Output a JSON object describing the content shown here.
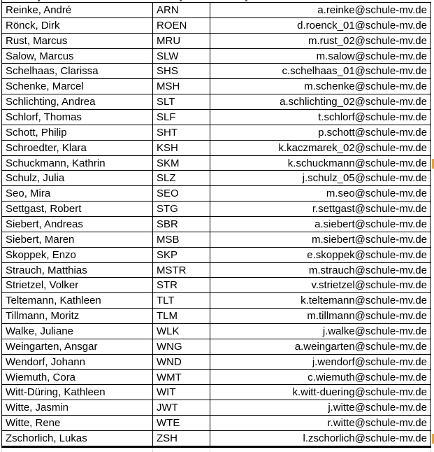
{
  "table": {
    "rows": [
      {
        "name": "Reinke, André",
        "code": "ARN",
        "email": "a.reinke@schule-mv.de"
      },
      {
        "name": "Rönck, Dirk",
        "code": "ROEN",
        "email": "d.roenck_01@schule-mv.de"
      },
      {
        "name": "Rust, Marcus",
        "code": "MRU",
        "email": "m.rust_02@schule-mv.de"
      },
      {
        "name": "Salow, Marcus",
        "code": "SLW",
        "email": "m.salow@schule-mv.de"
      },
      {
        "name": "Schelhaas, Clarissa",
        "code": "SHS",
        "email": "c.schelhaas_01@schule-mv.de"
      },
      {
        "name": "Schenke, Marcel",
        "code": "MSH",
        "email": "m.schenke@schule-mv.de"
      },
      {
        "name": "Schlichting, Andrea",
        "code": "SLT",
        "email": "a.schlichting_02@schule-mv.de"
      },
      {
        "name": "Schlorf, Thomas",
        "code": "SLF",
        "email": "t.schlorf@schule-mv.de"
      },
      {
        "name": "Schott, Philip",
        "code": "SHT",
        "email": "p.schott@schule-mv.de"
      },
      {
        "name": "Schroedter, Klara",
        "code": "KSH",
        "email": "k.kaczmarek_02@schule-mv.de"
      },
      {
        "name": "Schuckmann, Kathrin",
        "code": "SKM",
        "email": "k.schuckmann@schule-mv.de"
      },
      {
        "name": "Schulz, Julia",
        "code": "SLZ",
        "email": "j.schulz_05@schule-mv.de"
      },
      {
        "name": "Seo, Mira",
        "code": "SEO",
        "email": "m.seo@schule-mv.de"
      },
      {
        "name": "Settgast, Robert",
        "code": "STG",
        "email": "r.settgast@schule-mv.de"
      },
      {
        "name": "Siebert, Andreas",
        "code": "SBR",
        "email": "a.siebert@schule-mv.de"
      },
      {
        "name": "Siebert, Maren",
        "code": "MSB",
        "email": "m.siebert@schule-mv.de"
      },
      {
        "name": "Skoppek, Enzo",
        "code": "SKP",
        "email": "e.skoppek@schule-mv.de"
      },
      {
        "name": "Strauch, Matthias",
        "code": "MSTR",
        "email": "m.strauch@schule-mv.de"
      },
      {
        "name": "Strietzel, Volker",
        "code": "STR",
        "email": "v.strietzel@schule-mv.de"
      },
      {
        "name": "Teltemann, Kathleen",
        "code": "TLT",
        "email": "k.teltemann@schule-mv.de"
      },
      {
        "name": "Tillmann, Moritz",
        "code": "TLM",
        "email": "m.tillmann@schule-mv.de"
      },
      {
        "name": "Walke, Juliane",
        "code": "WLK",
        "email": "j.walke@schule-mv.de"
      },
      {
        "name": "Weingarten, Ansgar",
        "code": "WNG",
        "email": "a.weingarten@schule-mv.de"
      },
      {
        "name": "Wendorf, Johann",
        "code": "WND",
        "email": "j.wendorf@schule-mv.de"
      },
      {
        "name": "Wiemuth, Cora",
        "code": "WMT",
        "email": "c.wiemuth@schule-mv.de"
      },
      {
        "name": "Witt-Düring, Kathleen",
        "code": "WIT",
        "email": "k.witt-duering@schule-mv.de"
      },
      {
        "name": "Witte, Jasmin",
        "code": "JWT",
        "email": "j.witte@schule-mv.de"
      },
      {
        "name": "Witte, Rene",
        "code": "WTE",
        "email": "r.witte@schule-mv.de"
      },
      {
        "name": "Zschorlich, Lukas",
        "code": "ZSH",
        "email": "l.zschorlich@schule-mv.de"
      }
    ]
  },
  "colors": {
    "cell_border": "#000000",
    "gridline": "#d6d6d6",
    "clipped_mark": "#e8a33d"
  },
  "clipped_marks": {
    "description": "cut-off orange text from next column at right screenshot edge",
    "row_indexes": [
      10,
      28
    ]
  }
}
